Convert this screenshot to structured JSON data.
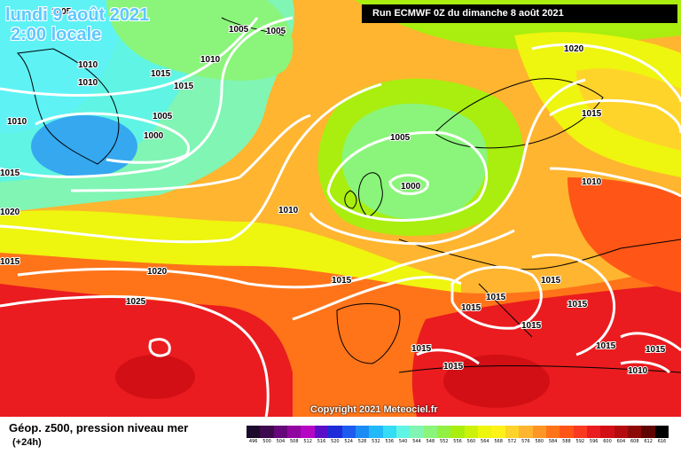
{
  "header": {
    "date_line1": "lundi 9 août 2021",
    "date_line2": "2:00 locale",
    "run_info": "Run ECMWF 0Z du dimanche 8 août 2021",
    "copyright": "Copyright 2021 Meteociel.fr"
  },
  "footer": {
    "title": "Géop. z500, pression niveau mer",
    "subtitle": "(+24h)"
  },
  "legend": {
    "labels": [
      "496",
      "500",
      "504",
      "508",
      "512",
      "516",
      "520",
      "524",
      "528",
      "532",
      "536",
      "540",
      "544",
      "548",
      "552",
      "556",
      "560",
      "564",
      "568",
      "572",
      "576",
      "580",
      "584",
      "588",
      "592",
      "596",
      "600",
      "604",
      "608",
      "612",
      "616"
    ],
    "colors": [
      "#1c0a2c",
      "#3d0a4d",
      "#66087a",
      "#90069e",
      "#b506c4",
      "#5a0ec8",
      "#1e2bd8",
      "#1c5af0",
      "#1c8cf5",
      "#21b9f7",
      "#35dcf6",
      "#5ff4e4",
      "#80f5b4",
      "#8af57a",
      "#92ef44",
      "#a9ee0e",
      "#cdf20a",
      "#eef50e",
      "#fef218",
      "#ffd42a",
      "#ffb52f",
      "#ff9524",
      "#ff7419",
      "#ff5517",
      "#f93a21",
      "#ea1c1f",
      "#d20f15",
      "#b40c0e",
      "#8d0908",
      "#5e0504",
      "#000000"
    ]
  },
  "map": {
    "colors": {
      "z500_cyan": "#5ef2f5",
      "z500_aqua": "#5ff4e4",
      "z500_mint": "#80f5b4",
      "z500_green": "#8af57a",
      "z500_lime": "#a9ee0e",
      "z500_yellow_green": "#cdf20a",
      "z500_yellow": "#eef50e",
      "z500_gold": "#ffd42a",
      "z500_orange": "#ffb52f",
      "z500_dark_orange": "#ff7419",
      "z500_red_orange": "#ff5517",
      "z500_red": "#ea1c1f",
      "z500_dark_red": "#d20f15",
      "z500_blue": "#35a8f0",
      "isobar": "#ffffff",
      "coastline": "#000000"
    },
    "isobar_labels": [
      "1005",
      "1005",
      "1005",
      "1010",
      "1010",
      "1010",
      "1015",
      "1015",
      "1005",
      "1000",
      "1010",
      "1015",
      "1020",
      "1015",
      "1005",
      "1000",
      "1010",
      "1020",
      "1015",
      "1025",
      "1020",
      "1015",
      "1015",
      "1015",
      "1015",
      "1010",
      "1015",
      "1015",
      "1015",
      "1015",
      "1015",
      "1015",
      "1010"
    ]
  }
}
